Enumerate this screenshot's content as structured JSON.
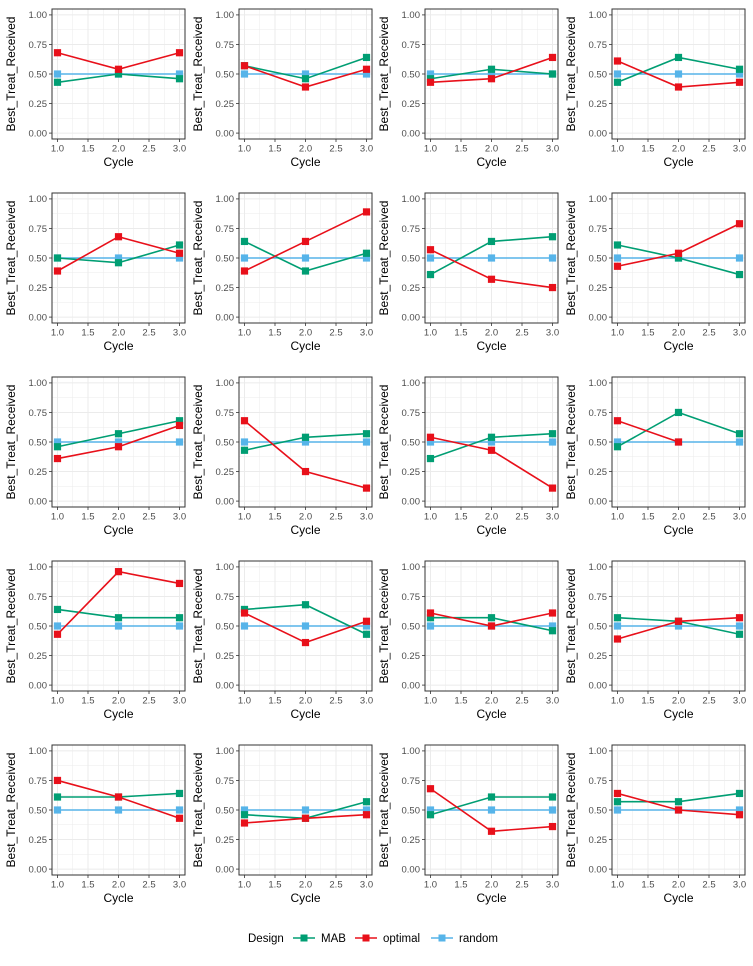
{
  "colors": {
    "MAB": "#009E73",
    "optimal": "#E8101A",
    "random": "#56B4E9",
    "grid": "#ebebeb",
    "panel_border": "#333333",
    "axis_text": "#4d4d4d"
  },
  "legend": {
    "title": "Design",
    "entries": [
      "MAB",
      "optimal",
      "random"
    ]
  },
  "chart_data": {
    "type": "line",
    "layout": "5 rows x 4 columns of panels",
    "xlabel": "Cycle",
    "ylabel": "Best_Treat_Received",
    "xlim": [
      1,
      3
    ],
    "ylim": [
      0,
      1
    ],
    "x_ticks": [
      "1.0",
      "1.5",
      "2.0",
      "2.5",
      "3.0"
    ],
    "y_ticks": [
      "0.00",
      "0.25",
      "0.50",
      "0.75",
      "1.00"
    ],
    "grid": true,
    "legend_position": "bottom",
    "x": [
      1,
      2,
      3
    ],
    "panels": [
      {
        "MAB": [
          0.43,
          0.5,
          0.46
        ],
        "optimal": [
          0.68,
          0.54,
          0.68
        ],
        "random": [
          0.5,
          0.5,
          0.5
        ]
      },
      {
        "MAB": [
          0.57,
          0.46,
          0.64
        ],
        "optimal": [
          0.57,
          0.39,
          0.54
        ],
        "random": [
          0.5,
          0.5,
          0.5
        ]
      },
      {
        "MAB": [
          0.46,
          0.54,
          0.5
        ],
        "optimal": [
          0.43,
          0.46,
          0.64
        ],
        "random": [
          0.5,
          0.5,
          0.5
        ]
      },
      {
        "MAB": [
          0.43,
          0.64,
          0.54
        ],
        "optimal": [
          0.61,
          0.39,
          0.43
        ],
        "random": [
          0.5,
          0.5,
          0.5
        ]
      },
      {
        "MAB": [
          0.5,
          0.46,
          0.61
        ],
        "optimal": [
          0.39,
          0.68,
          0.54
        ],
        "random": [
          0.5,
          0.5,
          0.5
        ]
      },
      {
        "MAB": [
          0.64,
          0.39,
          0.54
        ],
        "optimal": [
          0.39,
          0.64,
          0.89
        ],
        "random": [
          0.5,
          0.5,
          0.5
        ]
      },
      {
        "MAB": [
          0.36,
          0.64,
          0.68
        ],
        "optimal": [
          0.57,
          0.32,
          0.25
        ],
        "random": [
          0.5,
          0.5,
          0.5
        ]
      },
      {
        "MAB": [
          0.61,
          0.5,
          0.36
        ],
        "optimal": [
          0.43,
          0.54,
          0.79
        ],
        "random": [
          0.5,
          0.5,
          0.5
        ]
      },
      {
        "MAB": [
          0.46,
          0.57,
          0.68
        ],
        "optimal": [
          0.36,
          0.46,
          0.64
        ],
        "random": [
          0.5,
          0.5,
          0.5
        ]
      },
      {
        "MAB": [
          0.43,
          0.54,
          0.57
        ],
        "optimal": [
          0.68,
          0.25,
          0.11
        ],
        "random": [
          0.5,
          0.5,
          0.5
        ]
      },
      {
        "MAB": [
          0.36,
          0.54,
          0.57
        ],
        "optimal": [
          0.54,
          0.43,
          0.11
        ],
        "random": [
          0.5,
          0.5,
          0.5
        ]
      },
      {
        "MAB": [
          0.46,
          0.75,
          0.57
        ],
        "optimal": [
          0.68,
          0.5,
          null
        ],
        "random": [
          0.5,
          0.5,
          0.5
        ]
      },
      {
        "MAB": [
          0.64,
          0.57,
          0.57
        ],
        "optimal": [
          0.43,
          0.96,
          0.86
        ],
        "random": [
          0.5,
          0.5,
          0.5
        ]
      },
      {
        "MAB": [
          0.64,
          0.68,
          0.43
        ],
        "optimal": [
          0.61,
          0.36,
          0.54
        ],
        "random": [
          0.5,
          0.5,
          0.5
        ]
      },
      {
        "MAB": [
          0.57,
          0.57,
          0.46
        ],
        "optimal": [
          0.61,
          0.5,
          0.61
        ],
        "random": [
          0.5,
          0.5,
          0.5
        ]
      },
      {
        "MAB": [
          0.57,
          0.54,
          0.43
        ],
        "optimal": [
          0.39,
          0.54,
          0.57
        ],
        "random": [
          0.5,
          0.5,
          0.5
        ]
      },
      {
        "MAB": [
          0.61,
          0.61,
          0.64
        ],
        "optimal": [
          0.75,
          0.61,
          0.43
        ],
        "random": [
          0.5,
          0.5,
          0.5
        ]
      },
      {
        "MAB": [
          0.46,
          0.43,
          0.57
        ],
        "optimal": [
          0.39,
          0.43,
          0.46
        ],
        "random": [
          0.5,
          0.5,
          0.5
        ]
      },
      {
        "MAB": [
          0.46,
          0.61,
          0.61
        ],
        "optimal": [
          0.68,
          0.32,
          0.36
        ],
        "random": [
          0.5,
          0.5,
          0.5
        ]
      },
      {
        "MAB": [
          0.57,
          0.57,
          0.64
        ],
        "optimal": [
          0.64,
          0.5,
          0.46
        ],
        "random": [
          0.5,
          0.5,
          0.5
        ]
      }
    ]
  }
}
